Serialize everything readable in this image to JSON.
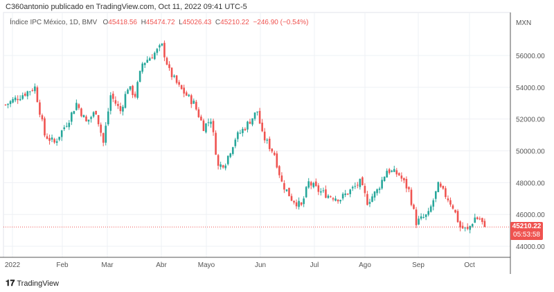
{
  "header": {
    "published": "C360antonio publicado en TradingView.com, Oct 11, 2022 09:41 UTC-5"
  },
  "legend": {
    "symbol": "Índice IPC México, 1D, BMV",
    "o_label": "O",
    "o": "45418.56",
    "h_label": "H",
    "h": "45474.72",
    "l_label": "L",
    "l": "45026.43",
    "c_label": "C",
    "c": "45210.22",
    "change": "−246.90 (−0.54%)"
  },
  "price_label": {
    "price": "45210.22",
    "countdown": "05:53:58"
  },
  "footer": {
    "brand": "TradingView"
  },
  "colors": {
    "up": "#26a69a",
    "down": "#ef5350"
  },
  "chart_data": {
    "type": "candlestick",
    "currency": "MXN",
    "ylim": [
      43400,
      57800
    ],
    "y_ticks": [
      "44000.00",
      "46000.00",
      "48000.00",
      "50000.00",
      "52000.00",
      "54000.00",
      "56000.00"
    ],
    "x_ticks": [
      "2022",
      "Feb",
      "Mar",
      "Abr",
      "Mayo",
      "Jun",
      "Jul",
      "Ago",
      "Sep",
      "Oct"
    ],
    "close_keypoints_trading_day": [
      [
        0,
        52900
      ],
      [
        12,
        54000
      ],
      [
        16,
        51000
      ],
      [
        20,
        50500
      ],
      [
        26,
        52000
      ],
      [
        29,
        53000
      ],
      [
        33,
        51800
      ],
      [
        37,
        52500
      ],
      [
        40,
        50500
      ],
      [
        43,
        53500
      ],
      [
        47,
        52500
      ],
      [
        50,
        54000
      ],
      [
        53,
        53500
      ],
      [
        56,
        55500
      ],
      [
        60,
        56000
      ],
      [
        64,
        56600
      ],
      [
        67,
        55000
      ],
      [
        71,
        54000
      ],
      [
        77,
        53000
      ],
      [
        81,
        51500
      ],
      [
        84,
        52000
      ],
      [
        87,
        49000
      ],
      [
        90,
        49300
      ],
      [
        94,
        50800
      ],
      [
        98,
        51500
      ],
      [
        103,
        52500
      ],
      [
        105,
        51000
      ],
      [
        110,
        49800
      ],
      [
        113,
        48000
      ],
      [
        117,
        47000
      ],
      [
        121,
        46500
      ],
      [
        124,
        48000
      ],
      [
        128,
        47500
      ],
      [
        132,
        47200
      ],
      [
        137,
        47000
      ],
      [
        141,
        47500
      ],
      [
        145,
        48000
      ],
      [
        148,
        46800
      ],
      [
        152,
        47500
      ],
      [
        156,
        48800
      ],
      [
        161,
        48500
      ],
      [
        165,
        47500
      ],
      [
        168,
        45500
      ],
      [
        171,
        45800
      ],
      [
        173,
        46000
      ],
      [
        177,
        47800
      ],
      [
        181,
        47000
      ],
      [
        183,
        46500
      ],
      [
        186,
        45200
      ],
      [
        189,
        45000
      ],
      [
        192,
        45800
      ],
      [
        194,
        45700
      ],
      [
        196,
        45210.22
      ]
    ],
    "last_close": 45210.22
  }
}
